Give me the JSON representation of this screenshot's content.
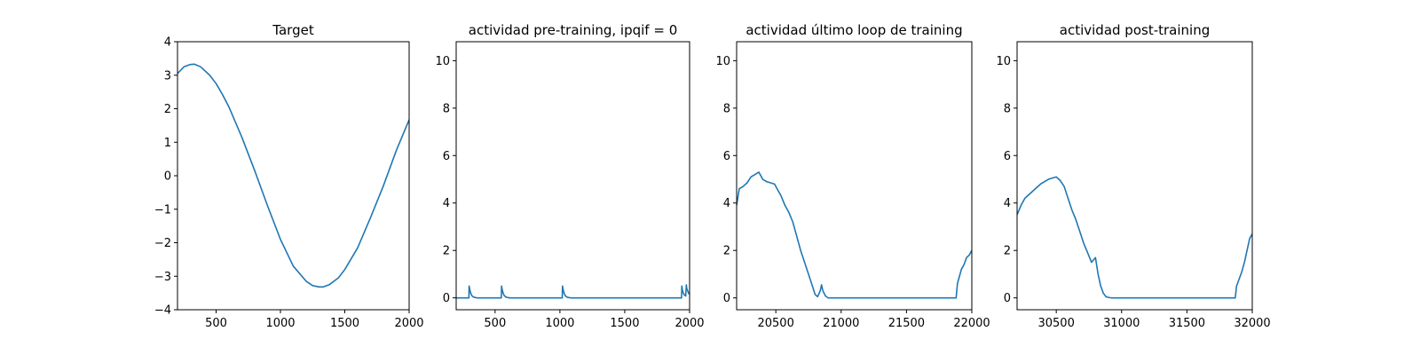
{
  "line_color": "#1f77b4",
  "chart_data": [
    {
      "type": "line",
      "title": "Target",
      "xlim": [
        200,
        2000
      ],
      "ylim": [
        -4,
        4
      ],
      "xticks": [
        500,
        1000,
        1500,
        2000
      ],
      "yticks": [
        -4,
        -3,
        -2,
        -1,
        0,
        1,
        2,
        3,
        4
      ],
      "grid": false,
      "series": [
        {
          "x": [
            200,
            250,
            300,
            330,
            380,
            450,
            500,
            550,
            600,
            700,
            800,
            900,
            1000,
            1100,
            1200,
            1250,
            1300,
            1330,
            1380,
            1450,
            1500,
            1600,
            1700,
            1800,
            1900,
            2000
          ],
          "y": [
            3.05,
            3.25,
            3.32,
            3.33,
            3.25,
            3.0,
            2.75,
            2.42,
            2.05,
            1.15,
            0.15,
            -0.9,
            -1.9,
            -2.7,
            -3.15,
            -3.28,
            -3.32,
            -3.32,
            -3.25,
            -3.05,
            -2.8,
            -2.15,
            -1.25,
            -0.3,
            0.75,
            1.67
          ]
        }
      ]
    },
    {
      "type": "line",
      "title": "actividad pre-training, ipqif = 0",
      "xlim": [
        200,
        2000
      ],
      "ylim": [
        -0.5,
        10.8
      ],
      "xticks": [
        500,
        1000,
        1500,
        2000
      ],
      "yticks": [
        0,
        2,
        4,
        6,
        8,
        10
      ],
      "grid": false,
      "series": [
        {
          "x": [
            200,
            298,
            300,
            305,
            312,
            320,
            335,
            360,
            400,
            548,
            550,
            555,
            562,
            570,
            585,
            610,
            650,
            1018,
            1020,
            1025,
            1032,
            1040,
            1055,
            1080,
            1120,
            1938,
            1940,
            1945,
            1952,
            1960,
            1970,
            1975,
            1978,
            1985,
            1992,
            2000
          ],
          "y": [
            0,
            0,
            0.5,
            0.35,
            0.2,
            0.1,
            0.03,
            0,
            0,
            0,
            0.5,
            0.35,
            0.2,
            0.1,
            0.03,
            0,
            0,
            0,
            0.5,
            0.35,
            0.2,
            0.1,
            0.03,
            0,
            0,
            0,
            0.5,
            0.32,
            0.2,
            0.12,
            0.08,
            0.55,
            0.4,
            0.3,
            0.2,
            0.15
          ]
        }
      ]
    },
    {
      "type": "line",
      "title": "actividad último loop de training",
      "xlim": [
        20200,
        22000
      ],
      "ylim": [
        -0.5,
        10.8
      ],
      "xticks": [
        20500,
        21000,
        21500,
        22000
      ],
      "yticks": [
        0,
        2,
        4,
        6,
        8,
        10
      ],
      "grid": false,
      "series": [
        {
          "x": [
            20200,
            20220,
            20250,
            20280,
            20310,
            20340,
            20370,
            20400,
            20430,
            20460,
            20490,
            20510,
            20540,
            20570,
            20600,
            20630,
            20660,
            20690,
            20720,
            20750,
            20780,
            20800,
            20820,
            20840,
            20850,
            20860,
            20880,
            20900,
            21000,
            21200,
            21400,
            21600,
            21880,
            21890,
            21900,
            21920,
            21940,
            21960,
            21980,
            22000
          ],
          "y": [
            3.9,
            4.6,
            4.7,
            4.85,
            5.1,
            5.2,
            5.3,
            5.0,
            4.9,
            4.85,
            4.8,
            4.6,
            4.3,
            3.9,
            3.6,
            3.2,
            2.6,
            2.0,
            1.5,
            1.0,
            0.5,
            0.15,
            0.05,
            0.3,
            0.55,
            0.3,
            0.08,
            0,
            0,
            0,
            0,
            0,
            0,
            0.6,
            0.8,
            1.2,
            1.4,
            1.7,
            1.8,
            2.0
          ]
        }
      ]
    },
    {
      "type": "line",
      "title": "actividad post-training",
      "xlim": [
        30200,
        32000
      ],
      "ylim": [
        -0.5,
        10.8
      ],
      "xticks": [
        30500,
        31000,
        31500,
        32000
      ],
      "yticks": [
        0,
        2,
        4,
        6,
        8,
        10
      ],
      "grid": false,
      "series": [
        {
          "x": [
            30200,
            30230,
            30260,
            30290,
            30320,
            30350,
            30380,
            30410,
            30440,
            30470,
            30500,
            30530,
            30560,
            30590,
            30620,
            30650,
            30680,
            30710,
            30740,
            30770,
            30800,
            30820,
            30840,
            30860,
            30880,
            30900,
            30920,
            31000,
            31200,
            31500,
            31870,
            31880,
            31900,
            31920,
            31940,
            31960,
            31980,
            32000
          ],
          "y": [
            3.5,
            3.9,
            4.2,
            4.35,
            4.5,
            4.65,
            4.8,
            4.9,
            5.0,
            5.05,
            5.1,
            4.95,
            4.7,
            4.2,
            3.7,
            3.3,
            2.8,
            2.3,
            1.9,
            1.5,
            1.7,
            1.0,
            0.5,
            0.2,
            0.05,
            0.02,
            0,
            0,
            0,
            0,
            0,
            0.5,
            0.8,
            1.1,
            1.5,
            2.0,
            2.5,
            2.7
          ]
        }
      ]
    }
  ]
}
